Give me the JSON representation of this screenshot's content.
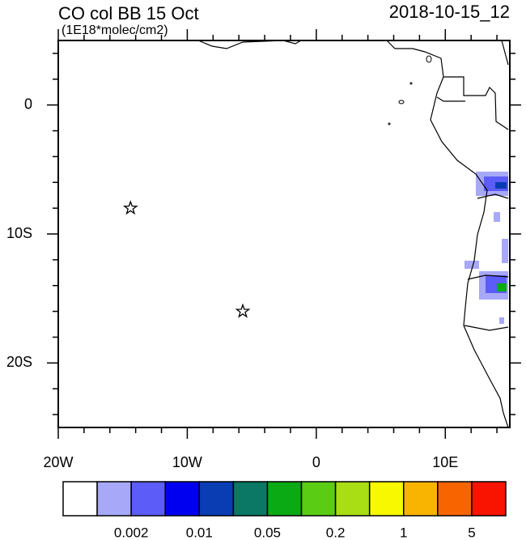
{
  "chart_data": {
    "type": "map",
    "title": "CO col BB 15 Oct",
    "subtitle": "(1E18*molec/cm2)",
    "date": "2018-10-15_12",
    "xlim": [
      -20,
      15
    ],
    "ylim": [
      -25,
      5
    ],
    "xticks": [
      {
        "value": -20,
        "label": "20W"
      },
      {
        "value": -10,
        "label": "10W"
      },
      0,
      {
        "value": 10,
        "label": "10E"
      }
    ],
    "yticks": [
      0,
      {
        "value": -10,
        "label": "10S"
      },
      {
        "value": -20,
        "label": "20S"
      }
    ],
    "xminor": [
      -18,
      -16,
      -14,
      -12,
      -8,
      -6,
      -4,
      -2,
      2,
      4,
      6,
      8,
      12,
      14
    ],
    "yminor": [
      4,
      2,
      -2,
      -4,
      -6,
      -8,
      -12,
      -14,
      -16,
      -18,
      -22,
      -24
    ],
    "markers": [
      {
        "lon": -14.4,
        "lat": -8
      },
      {
        "lon": -5.7,
        "lat": -16
      }
    ],
    "colorbar": {
      "colors": [
        "#ffffff",
        "#a8a8f8",
        "#5c5cf8",
        "#0000f0",
        "#0a3cb4",
        "#0a7864",
        "#0aaa14",
        "#5acc14",
        "#aade14",
        "#f8f800",
        "#f8b400",
        "#f86400",
        "#f81400"
      ],
      "labels": [
        "0.002",
        "0.01",
        "0.05",
        "0.2",
        "1",
        "5"
      ]
    }
  }
}
